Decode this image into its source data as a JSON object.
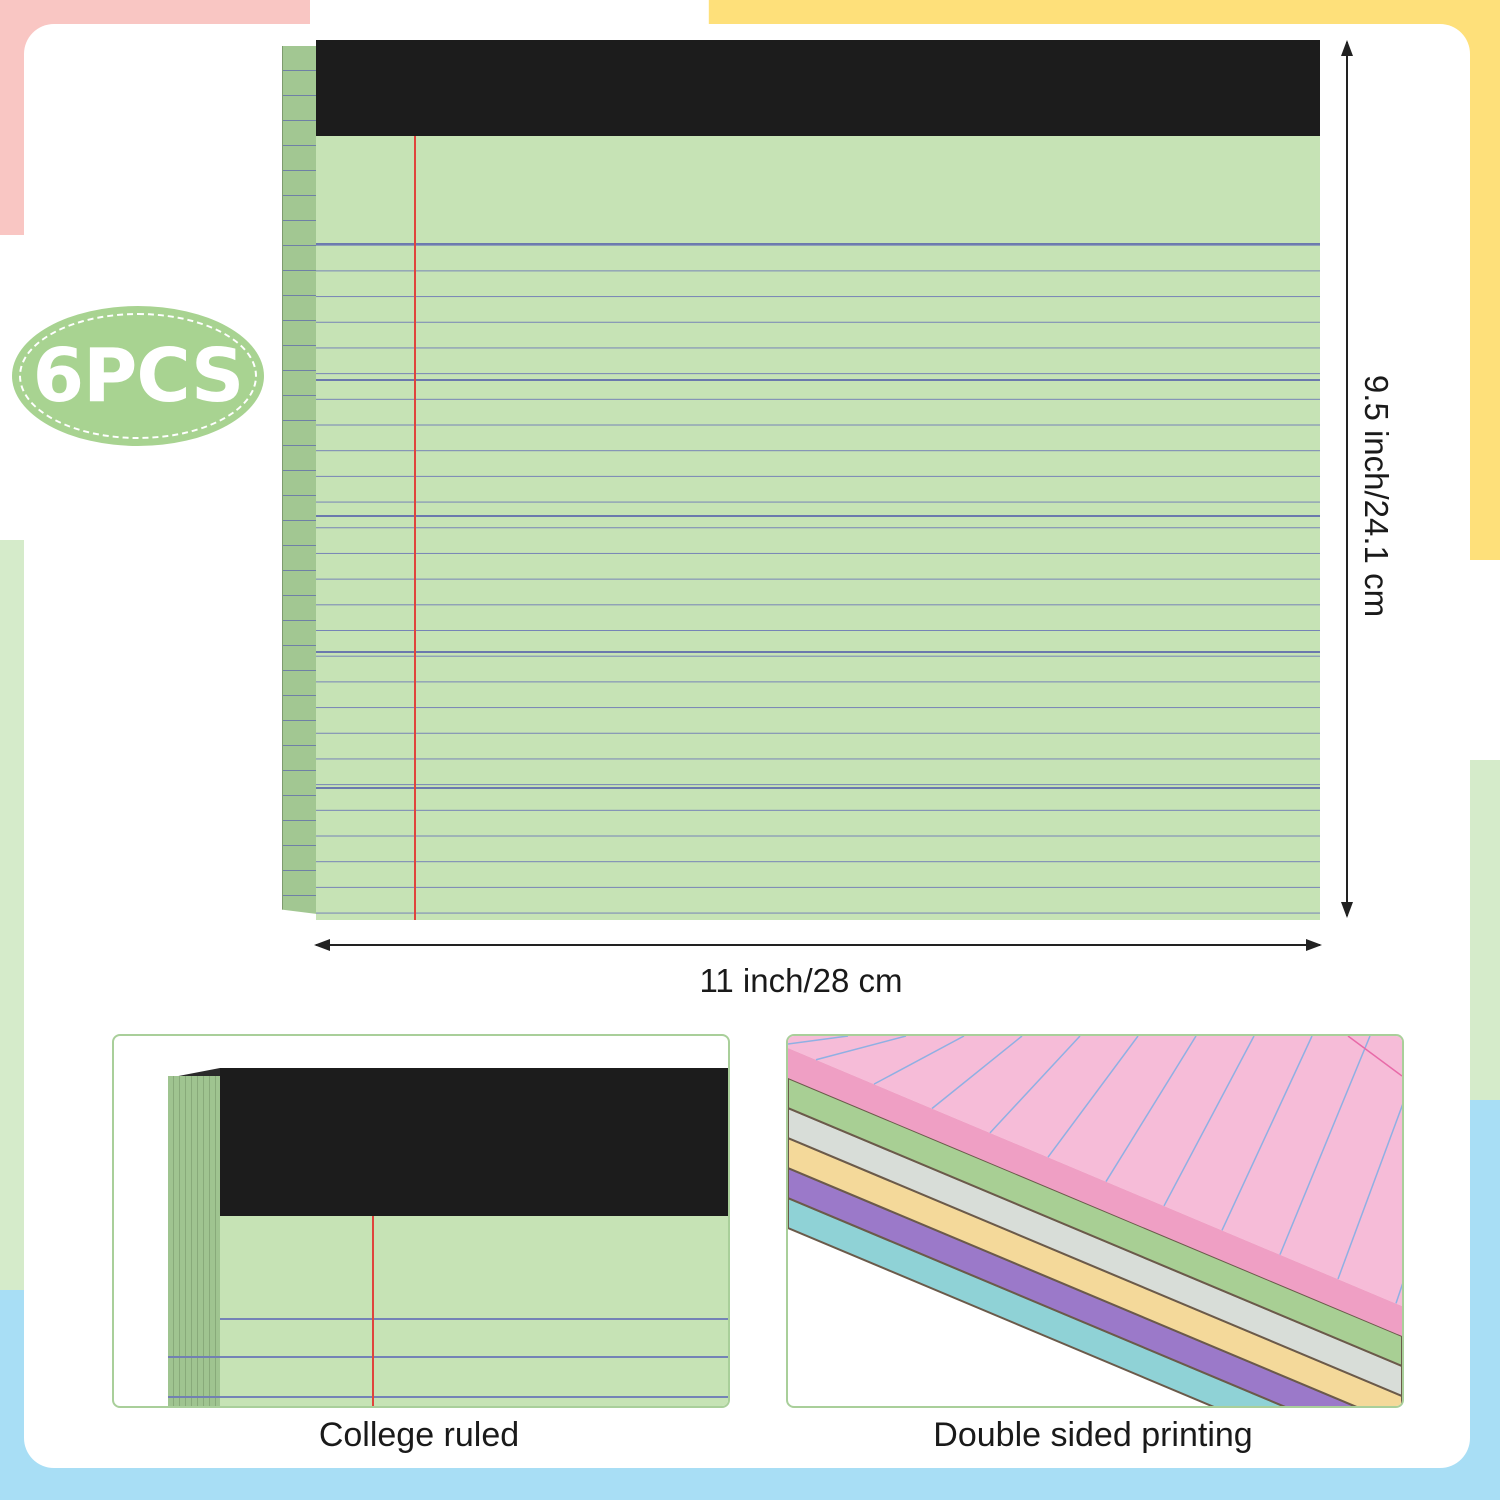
{
  "badge": {
    "text": "6PCS"
  },
  "dimensions": {
    "width_label": "11 inch/28 cm",
    "height_label": "9.5 inch/24.1 cm"
  },
  "panels": {
    "left_caption": "College ruled",
    "right_caption": "Double sided printing"
  },
  "colors": {
    "pad_paper": "#c6e3b5",
    "pad_header": "#1c1c1c",
    "rule_line": "#7280b2",
    "margin_line": "#e0443c",
    "badge": "#a8d391",
    "stack_layers": [
      "#f6bcd8",
      "#a8cf94",
      "#d8ddd8",
      "#f4d99a",
      "#9b79c9",
      "#8fd2d6"
    ]
  },
  "icons": [
    "arrow-horizontal-icon",
    "arrow-vertical-icon"
  ]
}
